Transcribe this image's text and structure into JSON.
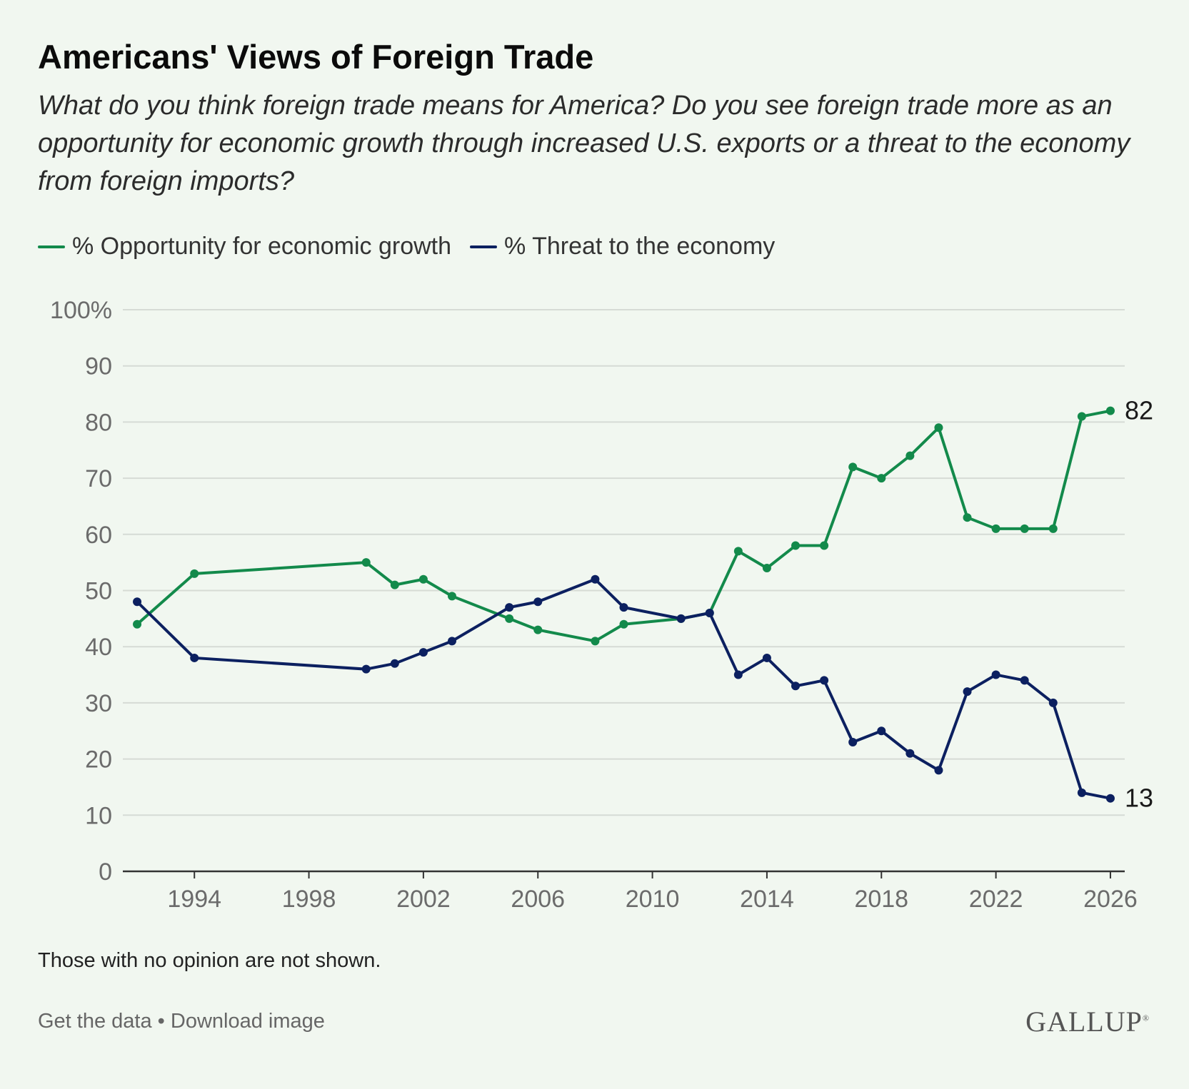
{
  "header": {
    "title": "Americans' Views of Foreign Trade",
    "subtitle": "What do you think foreign trade means for America? Do you see foreign trade more as an opportunity for economic growth through increased U.S. exports or a threat to the economy from foreign imports?"
  },
  "colors": {
    "opportunity": "#138a4b",
    "threat": "#0c2060",
    "grid": "#d6dbd5",
    "axis": "#333333",
    "background": "#f1f7f0"
  },
  "chart_data": {
    "type": "line",
    "xlabel": "",
    "ylabel": "",
    "ylim": [
      0,
      100
    ],
    "xlim": [
      1991.5,
      2026.5
    ],
    "y_ticks": [
      0,
      10,
      20,
      30,
      40,
      50,
      60,
      70,
      80,
      90,
      100
    ],
    "y_tick_labels": [
      "0",
      "10",
      "20",
      "30",
      "40",
      "50",
      "60",
      "70",
      "80",
      "90",
      "100%"
    ],
    "x_ticks": [
      1994,
      1998,
      2002,
      2006,
      2010,
      2014,
      2018,
      2022,
      2026
    ],
    "x_tick_labels": [
      "1994",
      "1998",
      "2002",
      "2006",
      "2010",
      "2014",
      "2018",
      "2022",
      "2026"
    ],
    "grid": true,
    "legend_position": "top-left",
    "series": [
      {
        "name": "% Opportunity for economic growth",
        "color_key": "opportunity",
        "x": [
          1992,
          1994,
          2000,
          2001,
          2002,
          2003,
          2005,
          2006,
          2008,
          2009,
          2011,
          2012,
          2013,
          2014,
          2015,
          2016,
          2017,
          2018,
          2019,
          2020,
          2021,
          2022,
          2023,
          2024,
          2025,
          2026
        ],
        "values": [
          44,
          53,
          55,
          51,
          52,
          49,
          45,
          43,
          41,
          44,
          45,
          46,
          57,
          54,
          58,
          58,
          72,
          70,
          74,
          79,
          63,
          61,
          61,
          61,
          81,
          82
        ],
        "end_label": "82"
      },
      {
        "name": "% Threat to the economy",
        "color_key": "threat",
        "x": [
          1992,
          1994,
          2000,
          2001,
          2002,
          2003,
          2005,
          2006,
          2008,
          2009,
          2011,
          2012,
          2013,
          2014,
          2015,
          2016,
          2017,
          2018,
          2019,
          2020,
          2021,
          2022,
          2023,
          2024,
          2025,
          2026
        ],
        "values": [
          48,
          38,
          36,
          37,
          39,
          41,
          47,
          48,
          52,
          47,
          45,
          46,
          35,
          38,
          33,
          34,
          23,
          25,
          21,
          18,
          32,
          35,
          34,
          30,
          14,
          13
        ],
        "end_label": "13"
      }
    ]
  },
  "note": "Those with no opinion are not shown.",
  "footer": {
    "get_data": "Get the data",
    "separator": " • ",
    "download": "Download image",
    "brand": "GALLUP",
    "brand_mark": "®"
  }
}
